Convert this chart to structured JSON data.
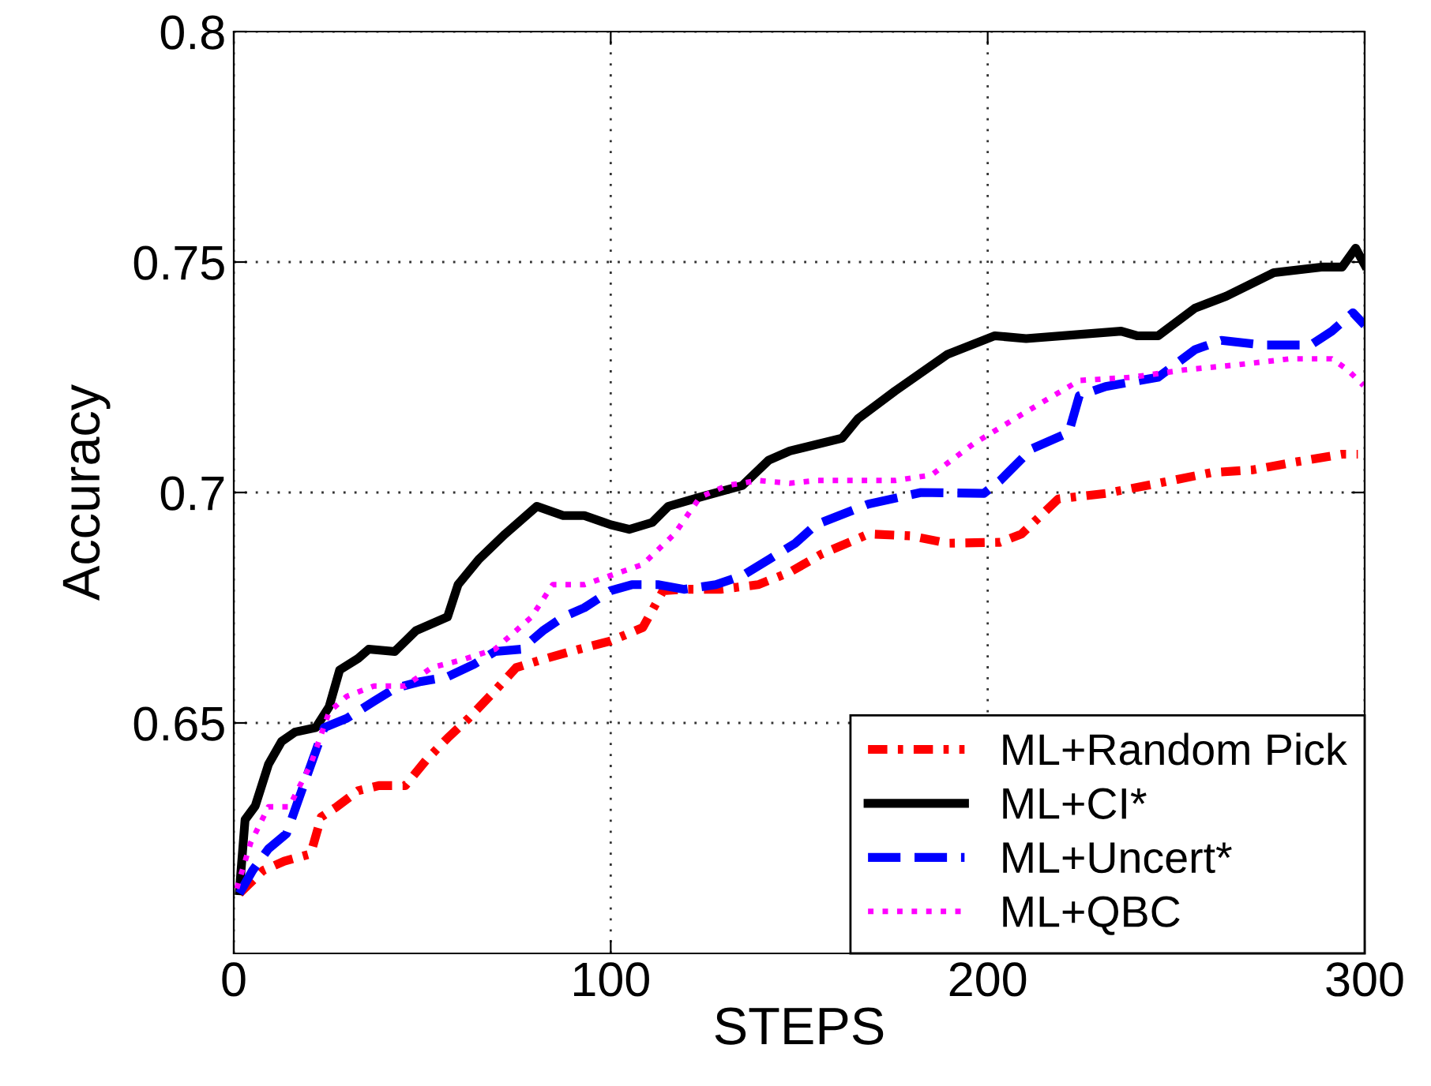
{
  "chart_data": {
    "type": "line",
    "xlabel": "STEPS",
    "ylabel": "Accuracy",
    "xlim": [
      0,
      300
    ],
    "ylim": [
      0.6,
      0.8
    ],
    "xticks": [
      0,
      100,
      200,
      300
    ],
    "yticks": [
      0.65,
      0.7,
      0.75,
      0.8
    ],
    "grid": true,
    "legend": "bottom right",
    "marker": "none",
    "series": [
      {
        "name": "ML+Random Pick",
        "color": "#ff0000",
        "line_style": "dashdot",
        "x": [
          1.5,
          7.8,
          13.4,
          20.4,
          23.2,
          27.3,
          33,
          38.5,
          45.5,
          51.1,
          56.7,
          62.3,
          69.3,
          74.9,
          82,
          91.6,
          100,
          108.5,
          113.9,
          119.4,
          129.2,
          139.1,
          147.5,
          155.8,
          168.4,
          179.5,
          189.4,
          203.3,
          209,
          218.7,
          231.3,
          245.2,
          259.2,
          270.3,
          281.5,
          294,
          298.2
        ],
        "values": [
          0.613,
          0.618,
          0.62,
          0.6216,
          0.6296,
          0.6318,
          0.6353,
          0.6364,
          0.6364,
          0.642,
          0.6467,
          0.651,
          0.657,
          0.662,
          0.6638,
          0.666,
          0.6678,
          0.6707,
          0.6787,
          0.679,
          0.679,
          0.68,
          0.6827,
          0.6866,
          0.691,
          0.6906,
          0.689,
          0.6892,
          0.691,
          0.6986,
          0.6998,
          0.702,
          0.7043,
          0.7049,
          0.7066,
          0.7083,
          0.7083
        ]
      },
      {
        "name": "ML+CI*",
        "color": "#000000",
        "line_style": "solid",
        "x": [
          1.5,
          3,
          5.7,
          9.2,
          12.7,
          16.2,
          21.8,
          25.3,
          28.1,
          33,
          35.8,
          42.7,
          48.3,
          56.7,
          59.5,
          65,
          72,
          80.4,
          87.4,
          93,
          100,
          104.9,
          111,
          115.3,
          123.7,
          134.9,
          141.9,
          147.5,
          161.4,
          165.6,
          175.4,
          189.4,
          201.9,
          210.2,
          235.4,
          239.6,
          245.2,
          255,
          263.3,
          275.9,
          288.5,
          294,
          297.6,
          300
        ],
        "values": [
          0.6136,
          0.629,
          0.632,
          0.641,
          0.646,
          0.648,
          0.649,
          0.6535,
          0.6615,
          0.664,
          0.666,
          0.6655,
          0.67,
          0.673,
          0.68,
          0.6855,
          0.691,
          0.697,
          0.695,
          0.695,
          0.693,
          0.692,
          0.6935,
          0.697,
          0.699,
          0.7015,
          0.707,
          0.709,
          0.7118,
          0.716,
          0.722,
          0.73,
          0.734,
          0.7334,
          0.735,
          0.734,
          0.734,
          0.74,
          0.7426,
          0.7477,
          0.7489,
          0.7489,
          0.753,
          0.7494
        ]
      },
      {
        "name": "ML+Uncert*",
        "color": "#0000ff",
        "line_style": "dashed",
        "x": [
          1.5,
          5,
          9.2,
          14,
          19,
          24,
          30,
          37.2,
          42.7,
          49.7,
          56.7,
          63.7,
          69.3,
          76.3,
          82,
          87.4,
          93,
          100,
          105.6,
          112.5,
          119.4,
          127.9,
          135,
          142,
          149,
          154.4,
          168.4,
          182.3,
          199,
          203.3,
          211.7,
          221.5,
          224.3,
          231.3,
          245.2,
          255,
          262,
          273.2,
          285.7,
          291.3,
          296.9,
          300
        ],
        "values": [
          0.613,
          0.618,
          0.6227,
          0.626,
          0.6376,
          0.649,
          0.651,
          0.6547,
          0.6575,
          0.659,
          0.66,
          0.6627,
          0.6655,
          0.666,
          0.67,
          0.673,
          0.675,
          0.6787,
          0.68,
          0.68,
          0.679,
          0.68,
          0.682,
          0.6855,
          0.689,
          0.693,
          0.6975,
          0.7,
          0.6998,
          0.7026,
          0.7095,
          0.713,
          0.721,
          0.723,
          0.725,
          0.731,
          0.733,
          0.732,
          0.732,
          0.735,
          0.739,
          0.7363
        ]
      },
      {
        "name": "ML+QBC",
        "color": "#ff00ff",
        "line_style": "dotted",
        "x": [
          0.8,
          4.5,
          9.2,
          14.7,
          20.4,
          25.3,
          30,
          37.2,
          45.5,
          52.5,
          61,
          69.3,
          79,
          84.6,
          93,
          100,
          108.5,
          116.9,
          123.7,
          130.8,
          139.1,
          147.5,
          154.4,
          161.4,
          175.4,
          185.1,
          196.3,
          210.2,
          224.3,
          238.2,
          252.2,
          266.2,
          280.2,
          291.3,
          295.5,
          299.7
        ],
        "values": [
          0.6141,
          0.624,
          0.6318,
          0.6318,
          0.641,
          0.6524,
          0.6558,
          0.658,
          0.658,
          0.662,
          0.6638,
          0.666,
          0.673,
          0.68,
          0.68,
          0.682,
          0.6844,
          0.691,
          0.699,
          0.7015,
          0.7026,
          0.702,
          0.7026,
          0.7026,
          0.7026,
          0.7038,
          0.7106,
          0.7175,
          0.7243,
          0.725,
          0.7266,
          0.7277,
          0.729,
          0.729,
          0.7266,
          0.7232
        ]
      }
    ]
  }
}
